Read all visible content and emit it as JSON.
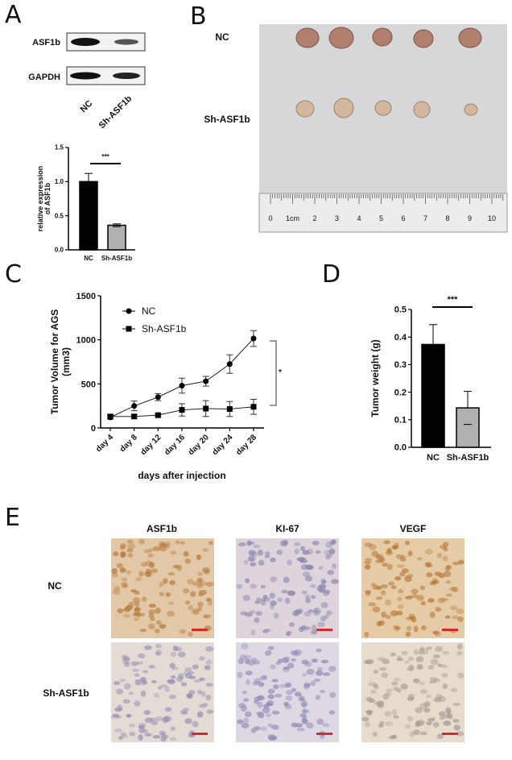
{
  "panels": {
    "A": {
      "label": "A",
      "blot_rows": [
        "ASF1b",
        "GAPDH"
      ],
      "blot_lanes": [
        "NC",
        "Sh-ASF1b"
      ]
    },
    "B": {
      "label": "B",
      "rows": [
        "NC",
        "Sh-ASF1b"
      ],
      "ruler_ticks": [
        "0",
        "1cm",
        "2",
        "3",
        "4",
        "5",
        "6",
        "7",
        "8",
        "9",
        "10"
      ]
    },
    "C": {
      "label": "C"
    },
    "D": {
      "label": "D"
    },
    "E": {
      "label": "E",
      "columns": [
        "ASF1b",
        "KI-67",
        "VEGF"
      ],
      "rows": [
        "NC",
        "Sh-ASF1b"
      ],
      "scale_bar_color": "#d42a2a"
    }
  },
  "chart_data": [
    {
      "id": "A-bar",
      "type": "bar",
      "categories": [
        "NC",
        "Sh-ASF1b"
      ],
      "values": [
        1.0,
        0.36
      ],
      "errors": [
        0.12,
        0.02
      ],
      "colors": [
        "#000000",
        "#b0b0b0"
      ],
      "ylabel": "relative expression of ASF1b",
      "ylim": [
        0,
        1.5
      ],
      "yticks": [
        "0.0",
        "0.5",
        "1.0",
        "1.5"
      ],
      "significance": "***"
    },
    {
      "id": "C-line",
      "type": "line",
      "categories": [
        "day 4",
        "day 8",
        "day 12",
        "day 16",
        "day 20",
        "day 24",
        "day 28"
      ],
      "series": [
        {
          "name": "NC",
          "marker": "circle",
          "values": [
            120,
            250,
            350,
            480,
            530,
            725,
            1015
          ],
          "errors": [
            20,
            55,
            40,
            85,
            55,
            105,
            90
          ]
        },
        {
          "name": "Sh-ASF1b",
          "marker": "square",
          "values": [
            130,
            130,
            145,
            205,
            220,
            215,
            240
          ],
          "errors": [
            25,
            20,
            20,
            70,
            90,
            85,
            85
          ]
        }
      ],
      "ylabel": "Tumor Volume for AGS (mm3)",
      "xlabel": "days after injection",
      "ylim": [
        0,
        1500
      ],
      "yticks": [
        "0",
        "500",
        "1000",
        "1500"
      ],
      "legend": "top-left",
      "significance": "*"
    },
    {
      "id": "D-bar",
      "type": "bar",
      "categories": [
        "NC",
        "Sh-ASF1b"
      ],
      "values": [
        0.373,
        0.143
      ],
      "errors": [
        0.072,
        0.06
      ],
      "colors": [
        "#000000",
        "#b0b0b0"
      ],
      "ylabel": "Tumor weight (g)",
      "ylim": [
        0,
        0.5
      ],
      "yticks": [
        "0.0",
        "0.1",
        "0.2",
        "0.3",
        "0.4",
        "0.5"
      ],
      "significance": "***"
    }
  ]
}
